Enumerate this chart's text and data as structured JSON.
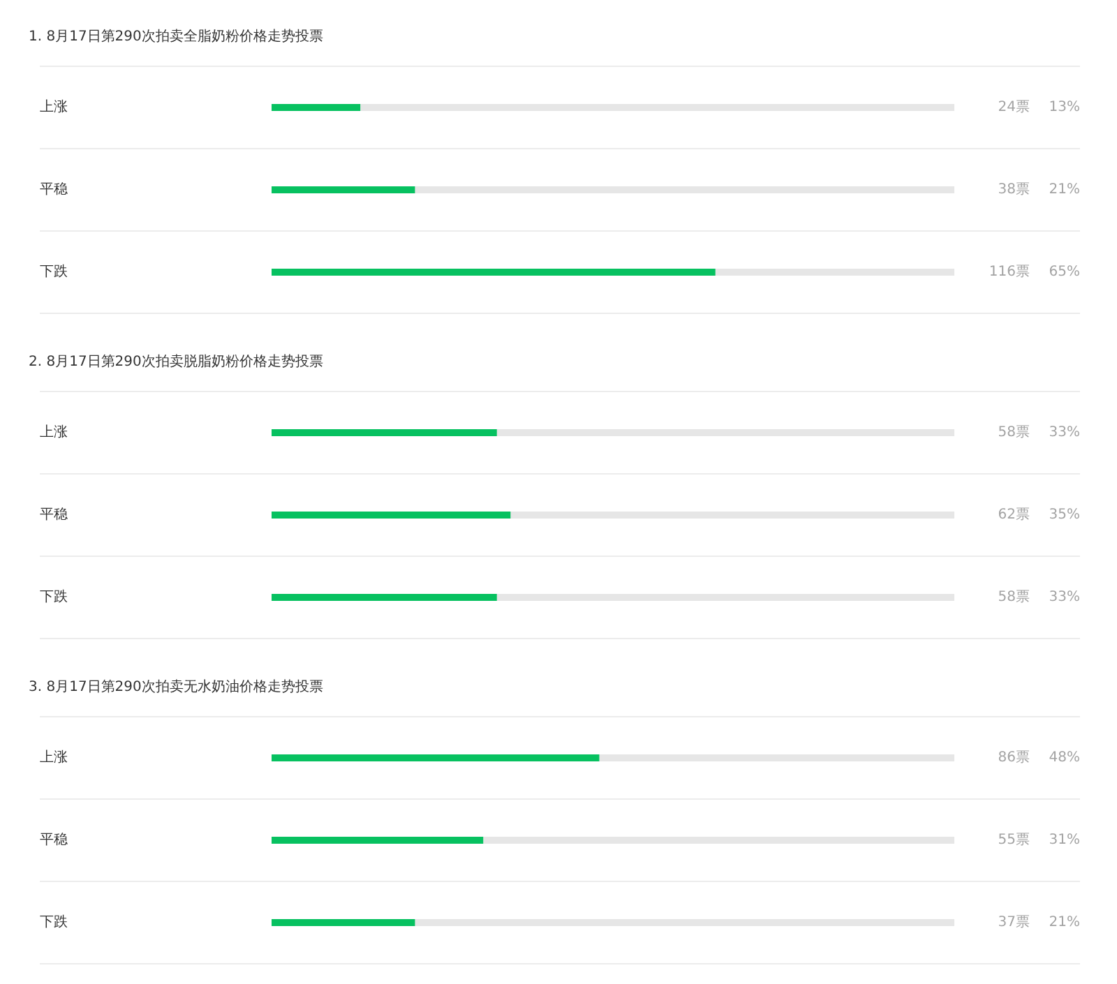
{
  "chart_data": [
    {
      "type": "bar",
      "orientation": "horizontal",
      "title": "1. 8月17日第290次拍卖全脂奶粉价格走势投票",
      "categories": [
        "上涨",
        "平稳",
        "下跌"
      ],
      "values": [
        13,
        21,
        65
      ],
      "value_labels": [
        "13%",
        "21%",
        "65%"
      ],
      "annotations": [
        "24票",
        "38票",
        "116票"
      ],
      "color": "#07c160",
      "xlim": [
        0,
        100
      ],
      "grid": "y",
      "tick_labels": false
    },
    {
      "type": "bar",
      "orientation": "horizontal",
      "title": "2. 8月17日第290次拍卖脱脂奶粉价格走势投票",
      "categories": [
        "上涨",
        "平稳",
        "下跌"
      ],
      "values": [
        33,
        35,
        33
      ],
      "value_labels": [
        "33%",
        "35%",
        "33%"
      ],
      "annotations": [
        "58票",
        "62票",
        "58票"
      ],
      "color": "#07c160",
      "xlim": [
        0,
        100
      ],
      "grid": "y",
      "tick_labels": false
    },
    {
      "type": "bar",
      "orientation": "horizontal",
      "title": "3. 8月17日第290次拍卖无水奶油价格走势投票",
      "categories": [
        "上涨",
        "平稳",
        "下跌"
      ],
      "values": [
        48,
        31,
        21
      ],
      "value_labels": [
        "48%",
        "31%",
        "21%"
      ],
      "annotations": [
        "86票",
        "55票",
        "37票"
      ],
      "color": "#07c160",
      "xlim": [
        0,
        100
      ],
      "grid": "y",
      "tick_labels": false
    }
  ]
}
